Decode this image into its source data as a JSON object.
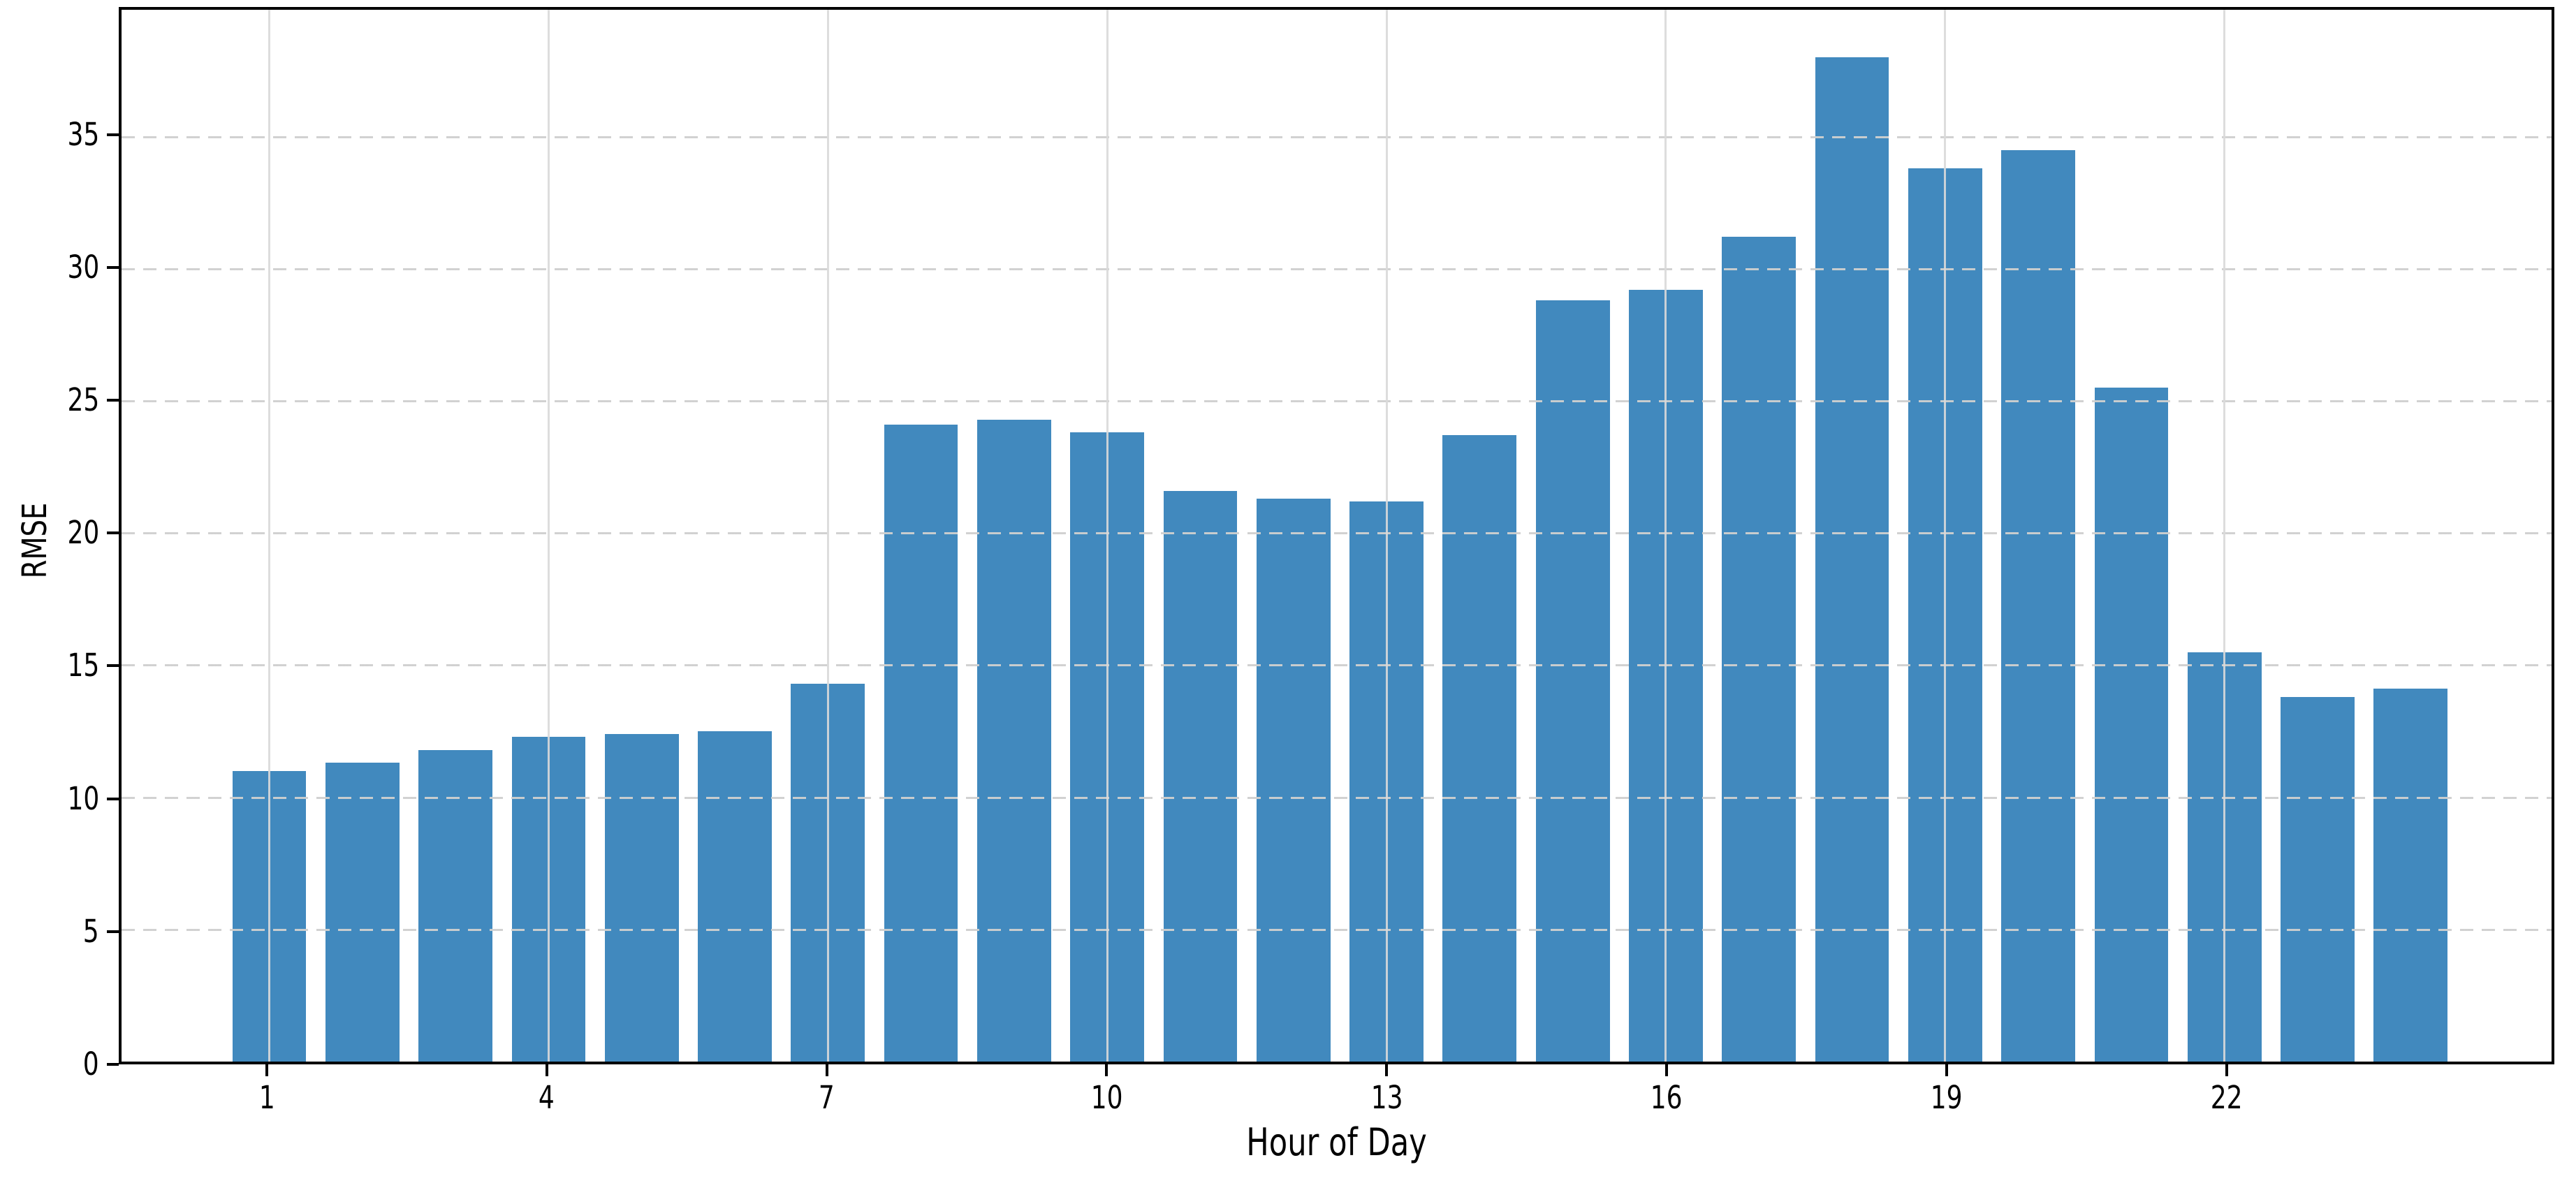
{
  "figure": {
    "background_color": "#ffffff",
    "text_color": "#000000",
    "spine_color": "#000000"
  },
  "chart_data": {
    "type": "bar",
    "title": "",
    "xlabel": "Hour of Day",
    "ylabel": "RMSE",
    "categories": [
      1,
      2,
      3,
      4,
      5,
      6,
      7,
      8,
      9,
      10,
      11,
      12,
      13,
      14,
      15,
      16,
      17,
      18,
      19,
      20,
      21,
      22,
      23,
      24
    ],
    "values": [
      11.0,
      11.3,
      11.8,
      12.3,
      12.4,
      12.5,
      14.3,
      24.1,
      24.3,
      23.8,
      21.6,
      21.3,
      21.2,
      23.7,
      28.8,
      29.2,
      31.2,
      38.0,
      33.8,
      34.5,
      25.5,
      15.5,
      13.8,
      14.1
    ],
    "bar_color": "#4189be",
    "x_tick_positions": [
      1,
      4,
      7,
      10,
      13,
      16,
      19,
      22
    ],
    "x_tick_labels": [
      "1",
      "4",
      "7",
      "10",
      "13",
      "16",
      "19",
      "22"
    ],
    "y_ticks": [
      0,
      5,
      10,
      15,
      20,
      25,
      30,
      35
    ],
    "y_tick_labels": [
      "0",
      "5",
      "10",
      "15",
      "20",
      "25",
      "30",
      "35"
    ],
    "ylim": [
      0,
      39.8
    ],
    "grid": {
      "horizontal_style": "dashed",
      "horizontal_color": "#cfcfcf",
      "vertical_style": "solid",
      "vertical_color": "#d9d9d9",
      "drawn_above_bars": true
    },
    "legend_position": "none"
  }
}
